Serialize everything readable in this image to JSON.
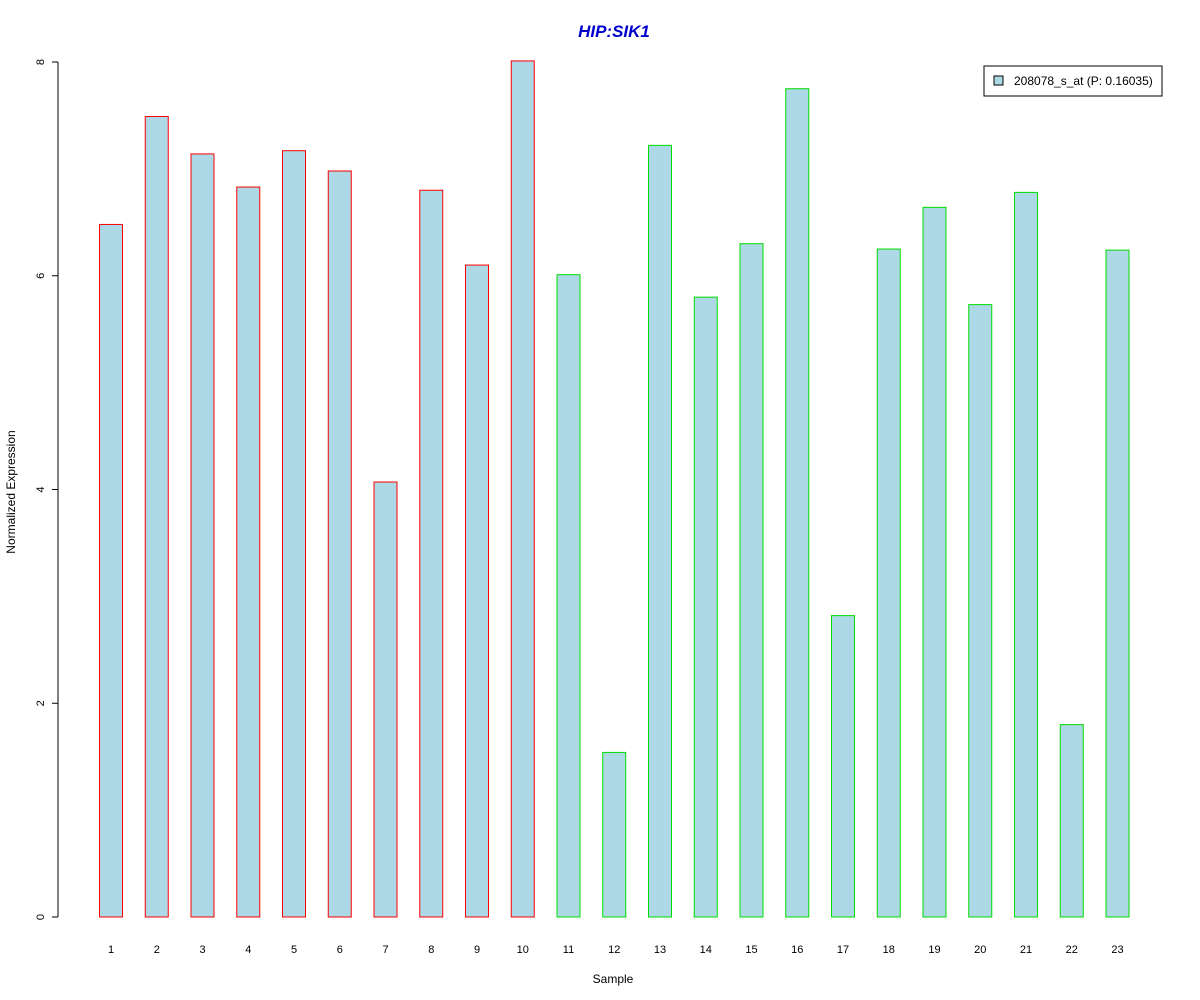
{
  "chart_data": {
    "type": "bar",
    "title": "HIP:SIK1",
    "xlabel": "Sample",
    "ylabel": "Normalized Expression",
    "categories": [
      "1",
      "2",
      "3",
      "4",
      "5",
      "6",
      "7",
      "8",
      "9",
      "10",
      "11",
      "12",
      "13",
      "14",
      "15",
      "16",
      "17",
      "18",
      "19",
      "20",
      "21",
      "22",
      "23"
    ],
    "values": [
      6.48,
      7.49,
      7.14,
      6.83,
      7.17,
      6.98,
      4.07,
      6.8,
      6.1,
      8.01,
      6.01,
      1.54,
      7.22,
      5.8,
      6.3,
      7.75,
      2.82,
      6.25,
      6.64,
      5.73,
      6.78,
      1.8,
      6.24
    ],
    "group_colors": [
      "#ff0000",
      "#ff0000",
      "#ff0000",
      "#ff0000",
      "#ff0000",
      "#ff0000",
      "#ff0000",
      "#ff0000",
      "#ff0000",
      "#ff0000",
      "#00dd00",
      "#00dd00",
      "#00dd00",
      "#00dd00",
      "#00dd00",
      "#00dd00",
      "#00dd00",
      "#00dd00",
      "#00dd00",
      "#00dd00",
      "#00dd00",
      "#00dd00",
      "#00dd00"
    ],
    "bar_fill": "#add8e6",
    "title_color": "#0000cc",
    "ylim": [
      0,
      8
    ],
    "yticks": [
      0,
      2,
      4,
      6,
      8
    ],
    "grid": false,
    "legend": {
      "position": "top-right",
      "entries": [
        {
          "label": "208078_s_at (P: 0.16035)",
          "color": "#add8e6"
        }
      ]
    }
  }
}
